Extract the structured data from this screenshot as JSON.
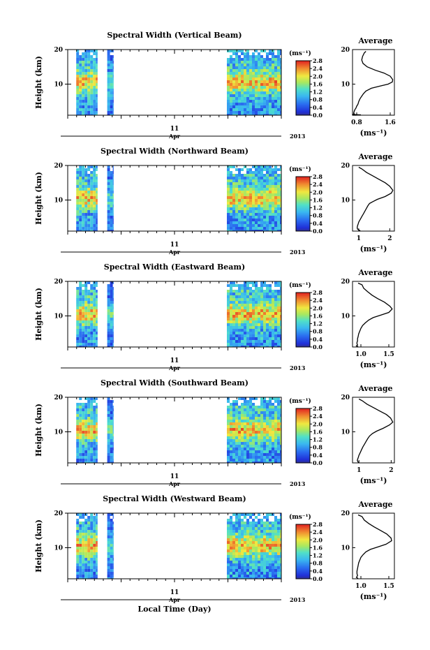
{
  "chart_data": [
    {
      "type": "heatmap",
      "title": "Spectral Width (Vertical Beam)",
      "ylabel": "Height (km)",
      "yticks": [
        "20",
        "10"
      ],
      "ylim": [
        1,
        20
      ],
      "xtick_label": "11",
      "month_label": "Apr",
      "year_label": "2013",
      "colorbar": {
        "unit_label": "(ms⁻¹)",
        "ticks": [
          "2.8",
          "2.4",
          "2.0",
          "1.6",
          "1.2",
          "0.8",
          "0.4",
          "0.0"
        ],
        "range": [
          0,
          2.8
        ]
      },
      "data_segments_fraction_of_time_axis": [
        [
          0.04,
          0.14
        ],
        [
          0.185,
          0.215
        ],
        [
          0.745,
          1.0
        ]
      ],
      "profile": {
        "title": "Average",
        "xticks": [
          "0.8",
          "1.6"
        ],
        "xlim": [
          0.7,
          1.7
        ],
        "xlabel": "(ms⁻¹)",
        "yticks": [
          "20",
          "10"
        ],
        "x": [
          1.02,
          0.98,
          0.94,
          0.92,
          0.95,
          1.05,
          1.25,
          1.45,
          1.6,
          1.66,
          1.65,
          1.55,
          1.35,
          1.15,
          1.02,
          0.96,
          0.92,
          0.88,
          0.85,
          0.83,
          0.8,
          0.78,
          0.76,
          0.75,
          0.74,
          0.74,
          0.73,
          0.73,
          0.73,
          0.74,
          0.72,
          0.71,
          0.9,
          0.78,
          0.7
        ],
        "y": [
          19.5,
          19.0,
          18.0,
          17.0,
          16.0,
          15.0,
          14.0,
          13.2,
          12.3,
          11.3,
          10.6,
          10.0,
          9.4,
          8.8,
          8.0,
          7.2,
          6.5,
          5.8,
          5.0,
          4.2,
          3.6,
          3.0,
          2.7,
          2.4,
          2.2,
          2.0,
          1.8,
          1.6,
          1.5,
          1.4,
          1.3,
          1.2,
          1.1,
          1.0,
          1.0
        ]
      }
    },
    {
      "type": "heatmap",
      "title": "Spectral Width (Northward Beam)",
      "ylabel": "Height (km)",
      "yticks": [
        "20",
        "10"
      ],
      "ylim": [
        1,
        20
      ],
      "xtick_label": "11",
      "month_label": "Apr",
      "year_label": "2013",
      "colorbar": {
        "unit_label": "(ms⁻¹)",
        "ticks": [
          "2.8",
          "2.4",
          "2.0",
          "1.6",
          "1.2",
          "0.8",
          "0.4",
          "0.0"
        ],
        "range": [
          0,
          2.8
        ]
      },
      "data_segments_fraction_of_time_axis": [
        [
          0.04,
          0.14
        ],
        [
          0.185,
          0.215
        ],
        [
          0.745,
          1.0
        ]
      ],
      "profile": {
        "title": "Average",
        "xticks": [
          "1",
          "2"
        ],
        "xlim": [
          0.8,
          2.15
        ],
        "xlabel": "(ms⁻¹)",
        "yticks": [
          "20",
          "10"
        ],
        "x": [
          1.0,
          1.1,
          1.25,
          1.45,
          1.65,
          1.85,
          2.0,
          2.1,
          2.05,
          1.85,
          1.6,
          1.45,
          1.35,
          1.3,
          1.25,
          1.2,
          1.15,
          1.1,
          1.05,
          1.0,
          0.98,
          0.96,
          0.95,
          0.96,
          1.0,
          1.05
        ],
        "y": [
          19.5,
          19.0,
          18.0,
          17.0,
          16.0,
          15.0,
          14.0,
          12.8,
          12.0,
          11.0,
          10.2,
          9.5,
          9.0,
          8.4,
          7.6,
          6.8,
          6.0,
          5.2,
          4.4,
          3.6,
          3.0,
          2.5,
          2.0,
          1.6,
          1.3,
          1.1
        ]
      }
    },
    {
      "type": "heatmap",
      "title": "Spectral Width (Eastward Beam)",
      "ylabel": "Height (km)",
      "yticks": [
        "20",
        "10"
      ],
      "ylim": [
        1,
        20
      ],
      "xtick_label": "11",
      "month_label": "Apr",
      "year_label": "2013",
      "colorbar": {
        "unit_label": "(ms⁻¹)",
        "ticks": [
          "2.8",
          "2.4",
          "2.0",
          "1.6",
          "1.2",
          "0.8",
          "0.4",
          "0.0"
        ],
        "range": [
          0,
          2.8
        ]
      },
      "data_segments_fraction_of_time_axis": [
        [
          0.04,
          0.14
        ],
        [
          0.185,
          0.215
        ],
        [
          0.745,
          1.0
        ]
      ],
      "profile": {
        "title": "Average",
        "xticks": [
          "1.0",
          "1.5"
        ],
        "xlim": [
          0.85,
          1.6
        ],
        "xlabel": "(ms⁻¹)",
        "yticks": [
          "20",
          "10"
        ],
        "x": [
          0.95,
          1.02,
          1.05,
          1.12,
          1.2,
          1.3,
          1.42,
          1.52,
          1.56,
          1.5,
          1.35,
          1.22,
          1.14,
          1.08,
          1.03,
          1.0,
          0.98,
          0.96,
          0.95,
          0.94,
          0.94,
          0.93,
          0.93,
          0.94,
          0.92,
          0.95
        ],
        "y": [
          19.5,
          19.0,
          18.0,
          17.0,
          16.0,
          15.0,
          14.0,
          12.8,
          12.0,
          11.0,
          10.2,
          9.5,
          8.8,
          8.0,
          7.2,
          6.4,
          5.6,
          4.8,
          4.0,
          3.4,
          2.8,
          2.3,
          1.9,
          1.6,
          1.3,
          1.1
        ]
      }
    },
    {
      "type": "heatmap",
      "title": "Spectral Width (Southward Beam)",
      "ylabel": "Height (km)",
      "yticks": [
        "20",
        "10"
      ],
      "ylim": [
        1,
        20
      ],
      "xtick_label": "11",
      "month_label": "Apr",
      "year_label": "2013",
      "colorbar": {
        "unit_label": "(ms⁻¹)",
        "ticks": [
          "2.8",
          "2.4",
          "2.0",
          "1.6",
          "1.2",
          "0.8",
          "0.4",
          "0.0"
        ],
        "range": [
          0,
          2.8
        ]
      },
      "data_segments_fraction_of_time_axis": [
        [
          0.04,
          0.14
        ],
        [
          0.185,
          0.215
        ],
        [
          0.745,
          1.0
        ]
      ],
      "profile": {
        "title": "Average",
        "xticks": [
          "1",
          "2"
        ],
        "xlim": [
          0.8,
          2.1
        ],
        "xlabel": "(ms⁻¹)",
        "yticks": [
          "20",
          "10"
        ],
        "x": [
          1.0,
          1.1,
          1.25,
          1.45,
          1.65,
          1.85,
          1.98,
          2.05,
          1.95,
          1.75,
          1.55,
          1.42,
          1.33,
          1.27,
          1.22,
          1.17,
          1.12,
          1.08,
          1.04,
          1.0,
          0.98,
          0.96,
          0.95,
          0.97,
          1.0
        ],
        "y": [
          19.5,
          19.0,
          18.0,
          17.0,
          16.0,
          15.0,
          14.0,
          12.8,
          12.0,
          11.0,
          10.2,
          9.5,
          8.8,
          8.0,
          7.2,
          6.4,
          5.6,
          4.8,
          4.0,
          3.2,
          2.6,
          2.1,
          1.7,
          1.3,
          1.1
        ]
      }
    },
    {
      "type": "heatmap",
      "title": "Spectral Width (Westward Beam)",
      "ylabel": "Height (km)",
      "yticks": [
        "20",
        "10"
      ],
      "ylim": [
        1,
        20
      ],
      "xtick_label": "11",
      "month_label": "Apr",
      "year_label": "2013",
      "xlabel": "Local Time (Day)",
      "colorbar": {
        "unit_label": "(ms⁻¹)",
        "ticks": [
          "2.8",
          "2.4",
          "2.0",
          "1.6",
          "1.2",
          "0.8",
          "0.4",
          "0.0"
        ],
        "range": [
          0,
          2.8
        ]
      },
      "data_segments_fraction_of_time_axis": [
        [
          0.04,
          0.14
        ],
        [
          0.185,
          0.215
        ],
        [
          0.745,
          1.0
        ]
      ],
      "profile": {
        "title": "Average",
        "xticks": [
          "1.0",
          "1.5"
        ],
        "xlim": [
          0.85,
          1.6
        ],
        "xlabel": "(ms⁻¹)",
        "yticks": [
          "20",
          "10"
        ],
        "x": [
          0.95,
          1.02,
          1.06,
          1.14,
          1.24,
          1.35,
          1.46,
          1.54,
          1.55,
          1.45,
          1.3,
          1.17,
          1.09,
          1.04,
          1.0,
          0.98,
          0.96,
          0.95,
          0.94,
          0.93,
          0.93,
          0.94,
          0.92,
          0.95
        ],
        "y": [
          19.5,
          19.0,
          18.0,
          17.0,
          16.0,
          15.0,
          14.0,
          12.8,
          12.0,
          11.0,
          10.2,
          9.5,
          8.8,
          8.0,
          7.2,
          6.4,
          5.6,
          4.8,
          4.0,
          3.2,
          2.5,
          1.9,
          1.4,
          1.1
        ]
      }
    }
  ]
}
